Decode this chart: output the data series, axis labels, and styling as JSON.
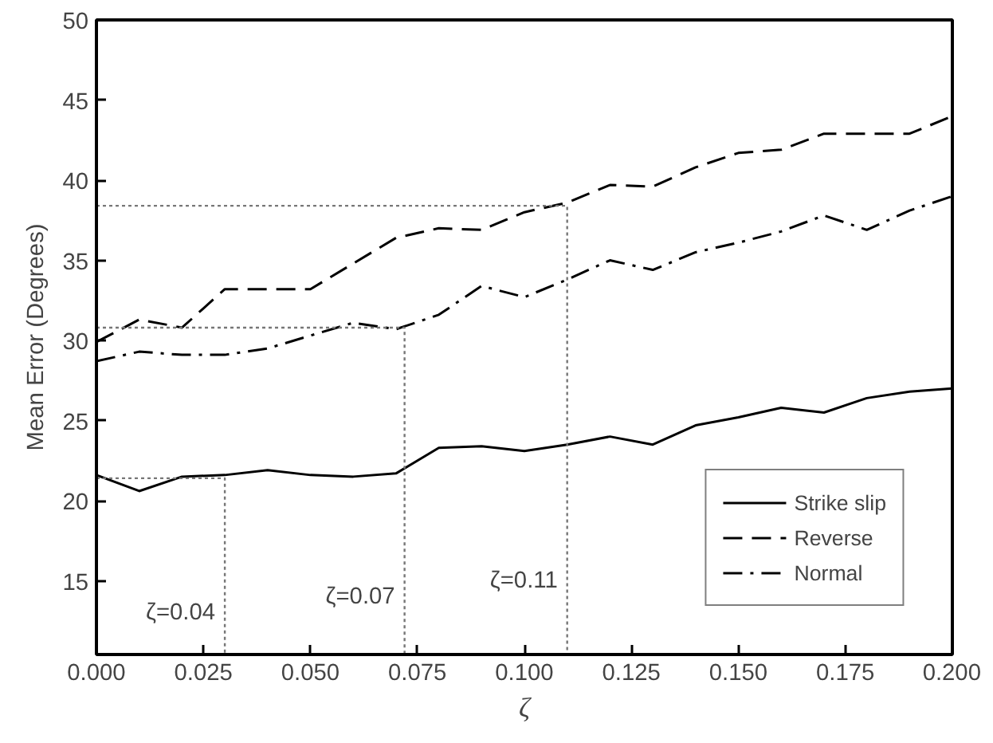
{
  "chart_data": {
    "type": "line",
    "xlabel": "ζ",
    "ylabel": "Mean Error (Degrees)",
    "x": [
      0,
      0.01,
      0.02,
      0.03,
      0.04,
      0.05,
      0.06,
      0.07,
      0.08,
      0.09,
      0.1,
      0.11,
      0.12,
      0.13,
      0.14,
      0.15,
      0.16,
      0.17,
      0.18,
      0.19,
      0.2
    ],
    "series": [
      {
        "name": "Strike slip",
        "color": "#000000",
        "line_style": "solid",
        "values": [
          21.6,
          20.6,
          21.5,
          21.6,
          21.9,
          21.6,
          21.5,
          21.7,
          23.3,
          23.4,
          23.1,
          23.5,
          24.0,
          23.5,
          24.7,
          25.2,
          25.8,
          25.5,
          26.4,
          26.8,
          27.0
        ]
      },
      {
        "name": "Reverse",
        "color": "#000000",
        "line_style": "dashed",
        "values": [
          29.9,
          31.3,
          30.8,
          33.2,
          33.2,
          33.2,
          34.8,
          36.4,
          37.0,
          36.9,
          38.0,
          38.6,
          39.7,
          39.6,
          40.8,
          41.7,
          41.9,
          42.9,
          42.9,
          42.9,
          44.0
        ]
      },
      {
        "name": "Normal",
        "color": "#000000",
        "line_style": "dashdot",
        "values": [
          28.7,
          29.3,
          29.1,
          29.1,
          29.5,
          30.3,
          31.1,
          30.7,
          31.6,
          33.4,
          32.7,
          33.8,
          35.0,
          34.4,
          35.5,
          36.1,
          36.8,
          37.8,
          36.9,
          38.1,
          39.0
        ]
      },
      {
        "color": "#777777",
        "line_style": "dotted",
        "x": [
          0,
          0.03,
          0.03
        ],
        "values": [
          21.4,
          21.4,
          10.4
        ]
      },
      {
        "color": "#777777",
        "line_style": "dotted",
        "x": [
          0,
          0.072,
          0.072
        ],
        "values": [
          30.8,
          30.8,
          10.4
        ]
      },
      {
        "color": "#777777",
        "line_style": "dotted",
        "x": [
          0,
          0.11,
          0.11
        ],
        "values": [
          38.4,
          38.4,
          10.4
        ]
      }
    ],
    "annotations": [
      "ζ=0.04",
      "ζ=0.07",
      "ζ=0.11"
    ],
    "xlim": [
      0,
      0.2
    ],
    "xticks": [
      {
        "value": 0,
        "label": "0.000"
      },
      {
        "value": 0.025,
        "label": "0.025"
      },
      {
        "value": 0.05,
        "label": "0.050"
      },
      {
        "value": 0.075,
        "label": "0.075"
      },
      {
        "value": 0.1,
        "label": "0.100"
      },
      {
        "value": 0.125,
        "label": "0.125"
      },
      {
        "value": 0.15,
        "label": "0.150"
      },
      {
        "value": 0.175,
        "label": "0.175"
      },
      {
        "value": 0.2,
        "label": "0.200"
      }
    ],
    "ylim": [
      10.4,
      50
    ],
    "yticks": [
      15,
      20,
      25,
      30,
      35,
      40,
      45,
      50
    ],
    "grid": false,
    "legend": "bottom right"
  }
}
